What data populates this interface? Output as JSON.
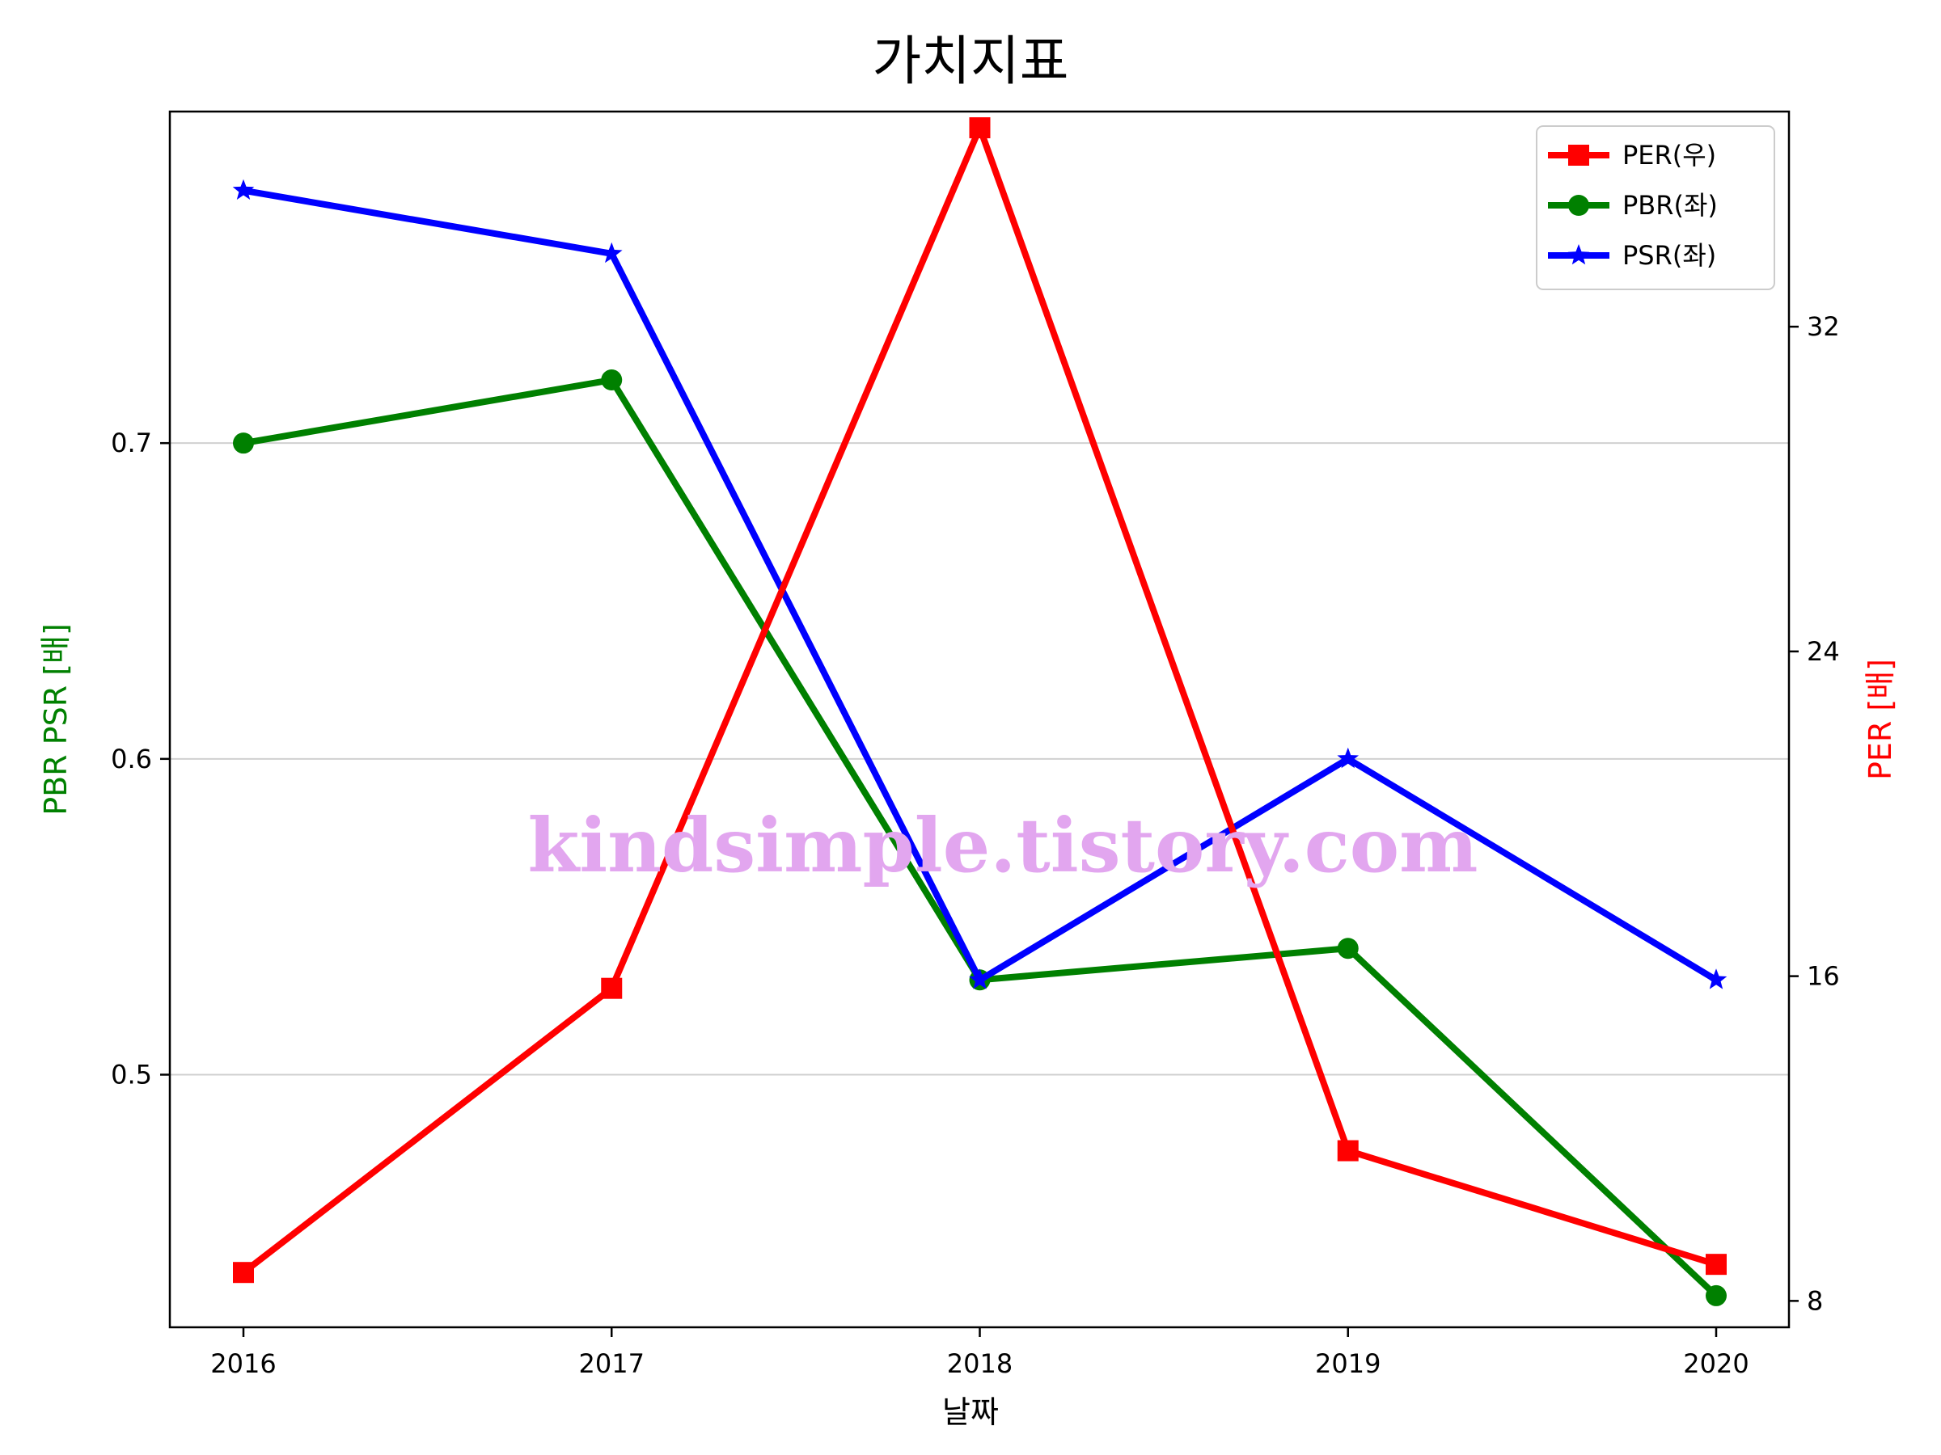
{
  "chart_data": {
    "type": "line",
    "title": "가치지표",
    "xlabel": "날짜",
    "ylabel_left": "PBR PSR [배]",
    "ylabel_right": "PER [배]",
    "categories": [
      "2016",
      "2017",
      "2018",
      "2019",
      "2020"
    ],
    "y_left": {
      "ticks": [
        "0.5",
        "0.6",
        "0.7"
      ],
      "range": [
        0.42,
        0.805
      ],
      "grid": true
    },
    "y_right": {
      "ticks": [
        "8",
        "16",
        "24",
        "32"
      ],
      "range": [
        7.35,
        37.3
      ]
    },
    "series": [
      {
        "name": "PER(우)",
        "axis": "right",
        "color": "#ff0000",
        "marker": "square",
        "values": [
          8.7,
          15.7,
          36.9,
          11.7,
          8.9
        ]
      },
      {
        "name": "PBR(좌)",
        "axis": "left",
        "color": "#008000",
        "marker": "circle",
        "values": [
          0.7,
          0.72,
          0.53,
          0.54,
          0.43
        ]
      },
      {
        "name": "PSR(좌)",
        "axis": "left",
        "color": "#0000ff",
        "marker": "star",
        "values": [
          0.78,
          0.76,
          0.53,
          0.6,
          0.53
        ]
      }
    ],
    "legend_position": "top-right",
    "watermark": "kindsimple.tistory.com"
  }
}
